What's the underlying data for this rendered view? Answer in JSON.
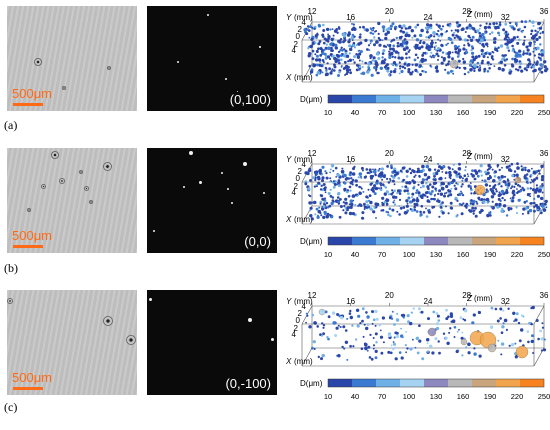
{
  "colorbar": {
    "label": "D(μm)",
    "ticks": [
      "10",
      "40",
      "70",
      "100",
      "130",
      "160",
      "190",
      "220",
      "250"
    ],
    "colors": [
      "#2a46a8",
      "#3b7ad1",
      "#6fb0e6",
      "#a7d3f2",
      "#8d88c0",
      "#b8b8b8",
      "#c9a57e",
      "#f2a44c",
      "#f6831f"
    ]
  },
  "axes": {
    "y_label": "Y",
    "y_unit": "(mm)",
    "x_label": "X",
    "x_unit": "(mm)",
    "z_label": "Z",
    "z_unit": "(mm)",
    "z_ticks": [
      "12",
      "16",
      "20",
      "24",
      "28",
      "32",
      "36"
    ],
    "y_ticks": [
      "4",
      "2",
      "0",
      "2",
      "4"
    ]
  },
  "scale_bar": "500μm",
  "rows": [
    {
      "label": "(a)",
      "coord": "(0,100)"
    },
    {
      "label": "(b)",
      "coord": "(0,0)"
    },
    {
      "label": "(c)",
      "coord": "(0,-100)"
    }
  ]
}
